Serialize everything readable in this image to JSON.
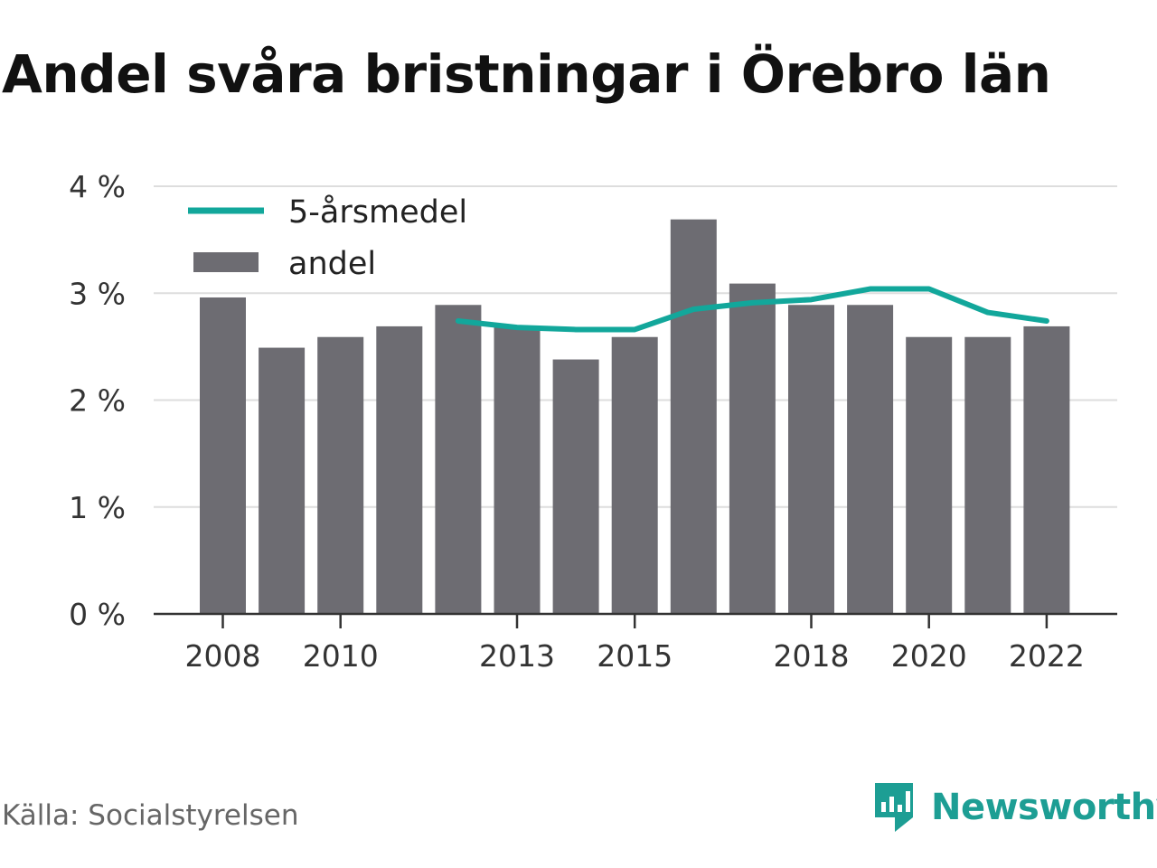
{
  "title": "Andel svåra bristningar i Örebro län",
  "source": "Källa: Socialstyrelsen",
  "brand": {
    "name": "Newsworthy",
    "icon": "newsworthy-logo-icon"
  },
  "colors": {
    "bar": "#6d6c72",
    "line": "#12a79b",
    "grid": "#dddddd",
    "axis": "#333333",
    "brand": "#1d9e94"
  },
  "chart_data": {
    "type": "bar",
    "title": "Andel svåra bristningar i Örebro län",
    "xlabel": "",
    "ylabel": "",
    "ylim": [
      0,
      4
    ],
    "yticks": [
      0,
      1,
      2,
      3,
      4
    ],
    "ytick_labels": [
      "0 %",
      "1 %",
      "2 %",
      "3 %",
      "4 %"
    ],
    "xtick_labels": [
      "2008",
      "2010",
      "2013",
      "2015",
      "2018",
      "2020",
      "2022"
    ],
    "grid": true,
    "legend": "top-left",
    "categories": [
      2008,
      2009,
      2010,
      2011,
      2012,
      2013,
      2014,
      2015,
      2016,
      2017,
      2018,
      2019,
      2020,
      2021,
      2022
    ],
    "series": [
      {
        "name": "andel",
        "type": "bar",
        "values": [
          2.96,
          2.49,
          2.59,
          2.69,
          2.89,
          2.69,
          2.38,
          2.59,
          3.69,
          3.09,
          2.89,
          2.89,
          2.59,
          2.59,
          2.69
        ]
      },
      {
        "name": "5-årsmedel",
        "type": "line",
        "values": [
          null,
          null,
          null,
          null,
          2.74,
          2.68,
          2.66,
          2.66,
          2.85,
          2.91,
          2.94,
          3.04,
          3.04,
          2.82,
          2.74
        ]
      }
    ]
  }
}
